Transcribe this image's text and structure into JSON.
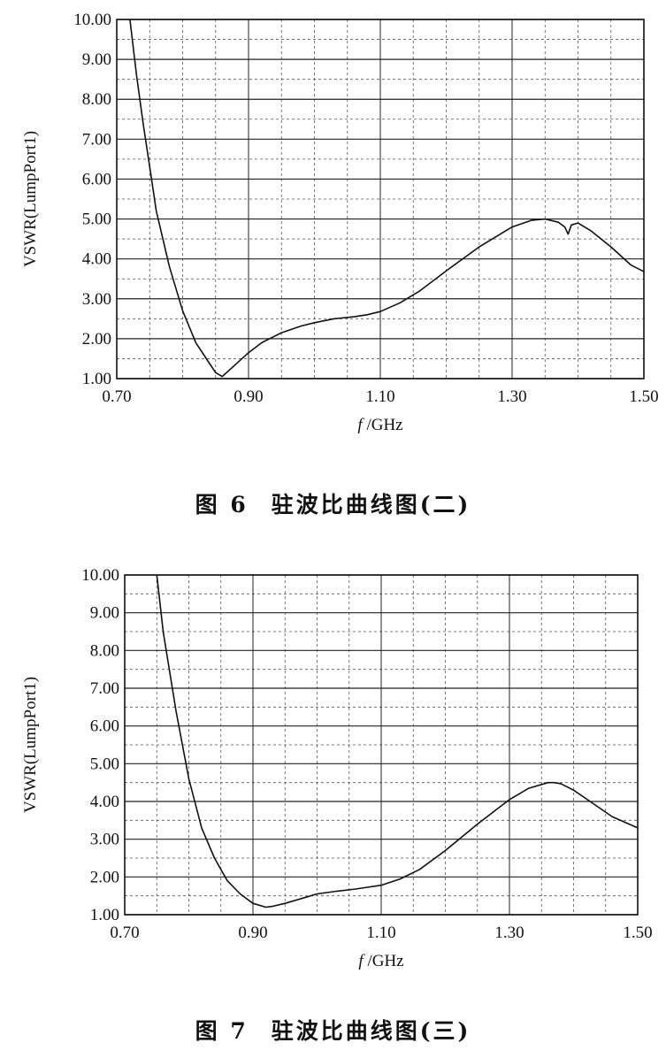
{
  "chart_data": [
    {
      "type": "line",
      "ylabel": "VSWR(LumpPort1)",
      "xlabel": "f /GHz",
      "xlim": [
        0.7,
        1.5
      ],
      "ylim": [
        1.0,
        10.0
      ],
      "x_ticks": [
        "0.70",
        "0.90",
        "1.10",
        "1.30",
        "1.50"
      ],
      "y_ticks": [
        "1.00",
        "2.00",
        "3.00",
        "4.00",
        "5.00",
        "6.00",
        "7.00",
        "8.00",
        "9.00",
        "10.00"
      ],
      "grid": true,
      "series": [
        {
          "x": [
            0.72,
            0.73,
            0.74,
            0.75,
            0.76,
            0.78,
            0.8,
            0.82,
            0.84,
            0.85,
            0.86,
            0.88,
            0.9,
            0.92,
            0.95,
            0.98,
            1.0,
            1.03,
            1.06,
            1.08,
            1.1,
            1.13,
            1.16,
            1.2,
            1.25,
            1.3,
            1.33,
            1.35,
            1.37,
            1.38,
            1.385,
            1.39,
            1.4,
            1.42,
            1.45,
            1.48,
            1.5
          ],
          "y": [
            10.0,
            8.6,
            7.4,
            6.3,
            5.2,
            3.8,
            2.7,
            1.9,
            1.4,
            1.15,
            1.05,
            1.35,
            1.65,
            1.9,
            2.15,
            2.32,
            2.4,
            2.5,
            2.55,
            2.6,
            2.68,
            2.9,
            3.2,
            3.7,
            4.3,
            4.8,
            4.97,
            5.0,
            4.92,
            4.8,
            4.62,
            4.85,
            4.9,
            4.7,
            4.3,
            3.85,
            3.68
          ]
        }
      ]
    },
    {
      "type": "line",
      "ylabel": "VSWR(LumpPort1)",
      "xlabel": "f /GHz",
      "xlim": [
        0.7,
        1.5
      ],
      "ylim": [
        1.0,
        10.0
      ],
      "x_ticks": [
        "0.70",
        "0.90",
        "1.10",
        "1.30",
        "1.50"
      ],
      "y_ticks": [
        "1.00",
        "2.00",
        "3.00",
        "4.00",
        "5.00",
        "6.00",
        "7.00",
        "8.00",
        "9.00",
        "10.00"
      ],
      "grid": true,
      "series": [
        {
          "x": [
            0.75,
            0.76,
            0.78,
            0.8,
            0.82,
            0.84,
            0.86,
            0.88,
            0.9,
            0.92,
            0.93,
            0.95,
            0.98,
            1.0,
            1.03,
            1.06,
            1.1,
            1.13,
            1.16,
            1.2,
            1.25,
            1.3,
            1.33,
            1.36,
            1.37,
            1.38,
            1.4,
            1.43,
            1.46,
            1.5
          ],
          "y": [
            10.0,
            8.5,
            6.4,
            4.6,
            3.3,
            2.5,
            1.9,
            1.55,
            1.3,
            1.2,
            1.22,
            1.3,
            1.45,
            1.55,
            1.62,
            1.68,
            1.78,
            1.95,
            2.2,
            2.7,
            3.4,
            4.05,
            4.35,
            4.5,
            4.5,
            4.47,
            4.3,
            3.95,
            3.6,
            3.3
          ]
        }
      ]
    }
  ],
  "figures": [
    {
      "caption_num": "图 6",
      "caption_text": "驻波比曲线图(二)"
    },
    {
      "caption_num": "图 7",
      "caption_text": "驻波比曲线图(三)"
    }
  ]
}
